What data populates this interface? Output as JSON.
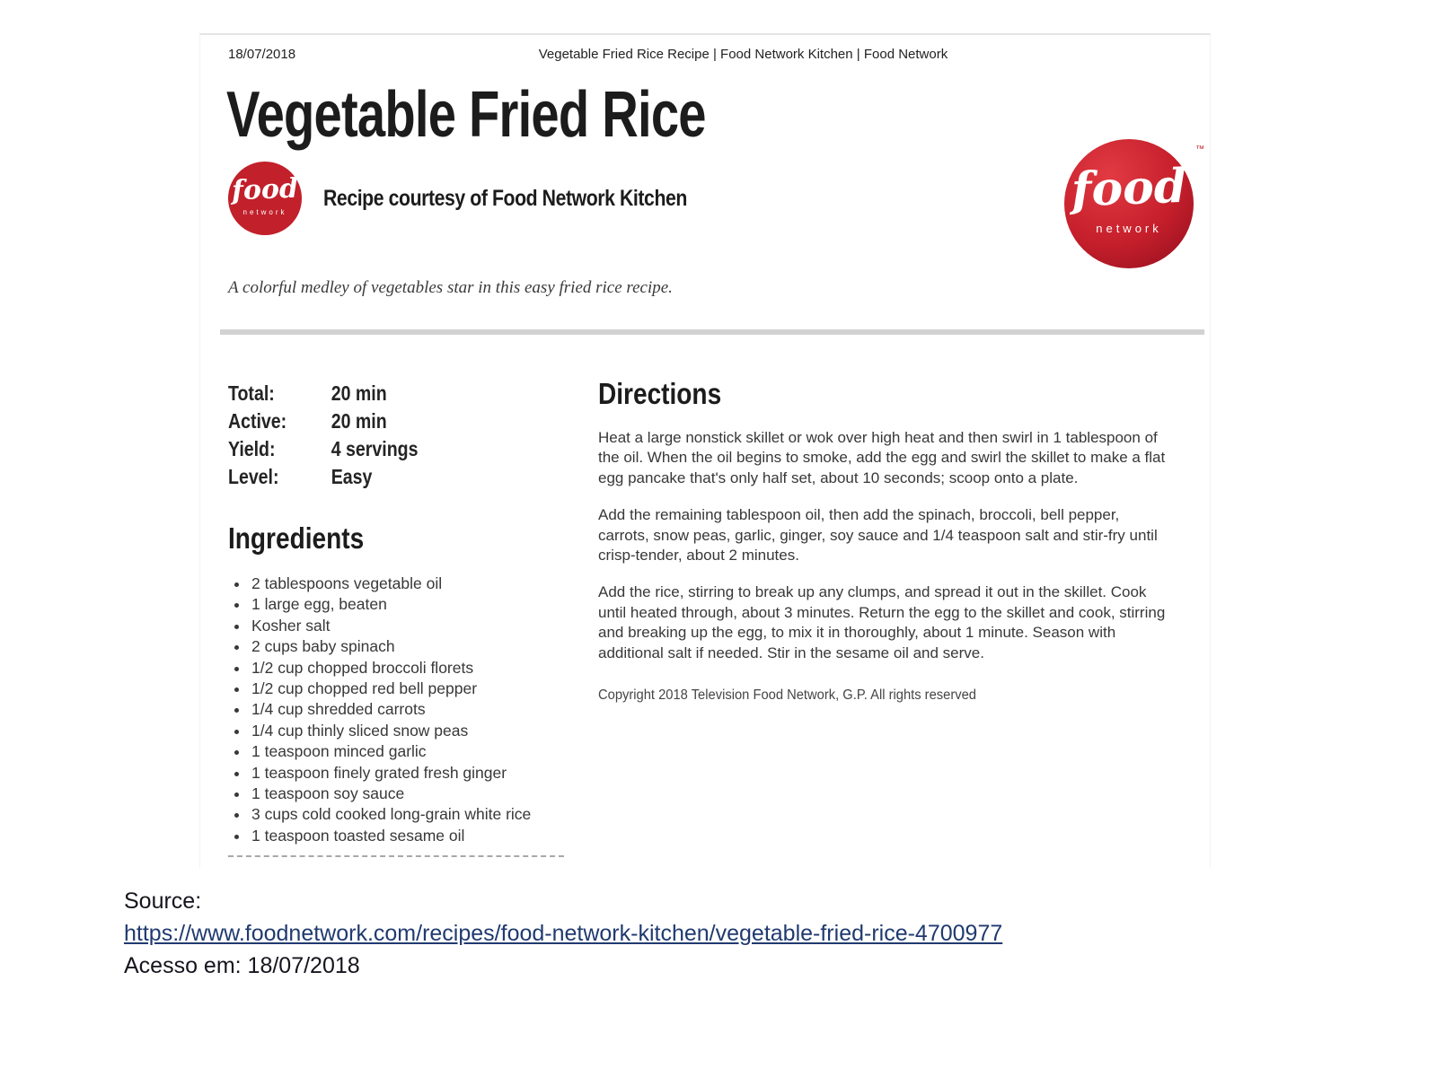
{
  "page": {
    "print_header": {
      "date": "18/07/2018",
      "title": "Vegetable Fried Rice Recipe | Food Network Kitchen | Food Network"
    },
    "title": "Vegetable Fried Rice",
    "courtesy": "Recipe courtesy of Food Network Kitchen",
    "brand": {
      "script": "food",
      "sub": "network",
      "trademark": "™",
      "red": "#c2202b",
      "red_dark": "#8f0d1d"
    },
    "description": "A colorful medley of vegetables star in this easy fried rice recipe.",
    "meta": [
      {
        "label": "Total:",
        "value": "20 min"
      },
      {
        "label": "Active:",
        "value": "20 min"
      },
      {
        "label": "Yield:",
        "value": "4 servings"
      },
      {
        "label": "Level:",
        "value": "Easy"
      }
    ],
    "ingredients": {
      "heading": "Ingredients",
      "items": [
        "2 tablespoons vegetable oil",
        "1 large egg, beaten",
        "Kosher salt",
        "2 cups baby spinach",
        "1/2 cup chopped broccoli florets",
        "1/2 cup chopped red bell pepper",
        "1/4 cup shredded carrots",
        "1/4 cup thinly sliced snow peas",
        "1 teaspoon minced garlic",
        "1 teaspoon finely grated fresh ginger",
        "1 teaspoon soy sauce",
        "3 cups cold cooked long-grain white rice",
        "1 teaspoon toasted sesame oil"
      ]
    },
    "directions": {
      "heading": "Directions",
      "paragraphs": [
        "Heat a large nonstick skillet or wok over high heat and then swirl in 1 tablespoon of the oil. When the oil begins to smoke, add the egg and swirl the skillet to make a flat egg pancake that's only half set, about 10 seconds; scoop onto a plate.",
        "Add the remaining tablespoon oil, then add the spinach, broccoli, bell pepper, carrots, snow peas, garlic, ginger, soy sauce and 1/4 teaspoon salt and stir-fry until crisp-tender, about 2 minutes.",
        "Add the rice, stirring to break up any clumps, and spread it out in the skillet. Cook until heated through, about 3 minutes. Return the egg to the skillet and cook, stirring and breaking up the egg, to mix it in thoroughly, about 1 minute. Season with additional salt if needed. Stir in the sesame oil and serve."
      ]
    },
    "copyright": "Copyright 2018 Television Food Network, G.P. All rights reserved"
  },
  "footer": {
    "source_label": "Source:",
    "source_url": "https://www.foodnetwork.com/recipes/food-network-kitchen/vegetable-fried-rice-4700977",
    "accessed": "Acesso em: 18/07/2018",
    "link_color": "#203a70"
  }
}
